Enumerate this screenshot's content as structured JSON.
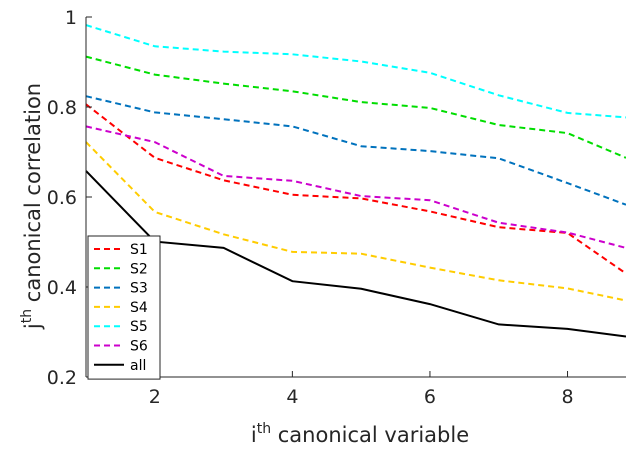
{
  "chart_data": {
    "type": "line",
    "xlabel": {
      "base": "i",
      "sup": "th",
      "rest": " canonical variable"
    },
    "ylabel": {
      "base": "j",
      "sup": "th",
      "rest": " canonical correlation"
    },
    "xlim": [
      1,
      8.85
    ],
    "ylim": [
      0.2,
      1.0
    ],
    "xticks": [
      2,
      4,
      6,
      8
    ],
    "yticks": [
      0.2,
      0.4,
      0.6,
      0.8,
      1.0
    ],
    "ytick_labels": [
      "0.2",
      "0.4",
      "0.6",
      "0.8",
      "1"
    ],
    "grid": false,
    "legend_position": "bottom-left",
    "x": [
      1,
      2,
      3,
      4,
      5,
      6,
      7,
      8,
      8.85
    ],
    "series": [
      {
        "name": "S1",
        "color": "#ff0000",
        "dash": "dashed",
        "values": [
          0.806,
          0.687,
          0.637,
          0.605,
          0.597,
          0.568,
          0.533,
          0.52,
          0.43
        ]
      },
      {
        "name": "S2",
        "color": "#00dd00",
        "dash": "dashed",
        "values": [
          0.912,
          0.872,
          0.852,
          0.835,
          0.811,
          0.798,
          0.76,
          0.742,
          0.687
        ]
      },
      {
        "name": "S3",
        "color": "#0072bd",
        "dash": "dashed",
        "values": [
          0.824,
          0.788,
          0.773,
          0.757,
          0.713,
          0.702,
          0.686,
          0.631,
          0.583
        ]
      },
      {
        "name": "S4",
        "color": "#ffcc00",
        "dash": "dashed",
        "values": [
          0.722,
          0.567,
          0.517,
          0.478,
          0.474,
          0.443,
          0.415,
          0.397,
          0.37
        ]
      },
      {
        "name": "S5",
        "color": "#00ffff",
        "dash": "dashed",
        "values": [
          0.982,
          0.935,
          0.923,
          0.917,
          0.901,
          0.876,
          0.826,
          0.787,
          0.777
        ]
      },
      {
        "name": "S6",
        "color": "#cc00cc",
        "dash": "dashed",
        "values": [
          0.757,
          0.722,
          0.647,
          0.636,
          0.602,
          0.593,
          0.543,
          0.521,
          0.487
        ]
      },
      {
        "name": "all",
        "color": "#000000",
        "dash": "solid",
        "values": [
          0.658,
          0.501,
          0.487,
          0.413,
          0.396,
          0.362,
          0.317,
          0.307,
          0.29
        ]
      }
    ]
  }
}
